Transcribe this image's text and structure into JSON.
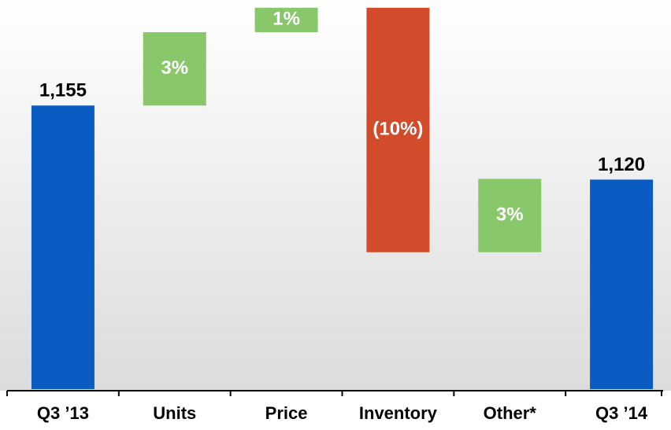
{
  "chart_data": {
    "type": "waterfall",
    "categories": [
      "Q3 ’13",
      "Units",
      "Price",
      "Inventory",
      "Other*",
      "Q3 ’14"
    ],
    "values": [
      1155,
      3,
      1,
      -10,
      3,
      1120
    ],
    "value_labels": [
      "1,155",
      "3%",
      "1%",
      "(10%)",
      "3%",
      "1,120"
    ],
    "ylim": [
      1021,
      1203
    ],
    "colors": {
      "total": "#0a5cc2",
      "increase": "#88c76a",
      "decrease": "#d24b2a"
    }
  }
}
